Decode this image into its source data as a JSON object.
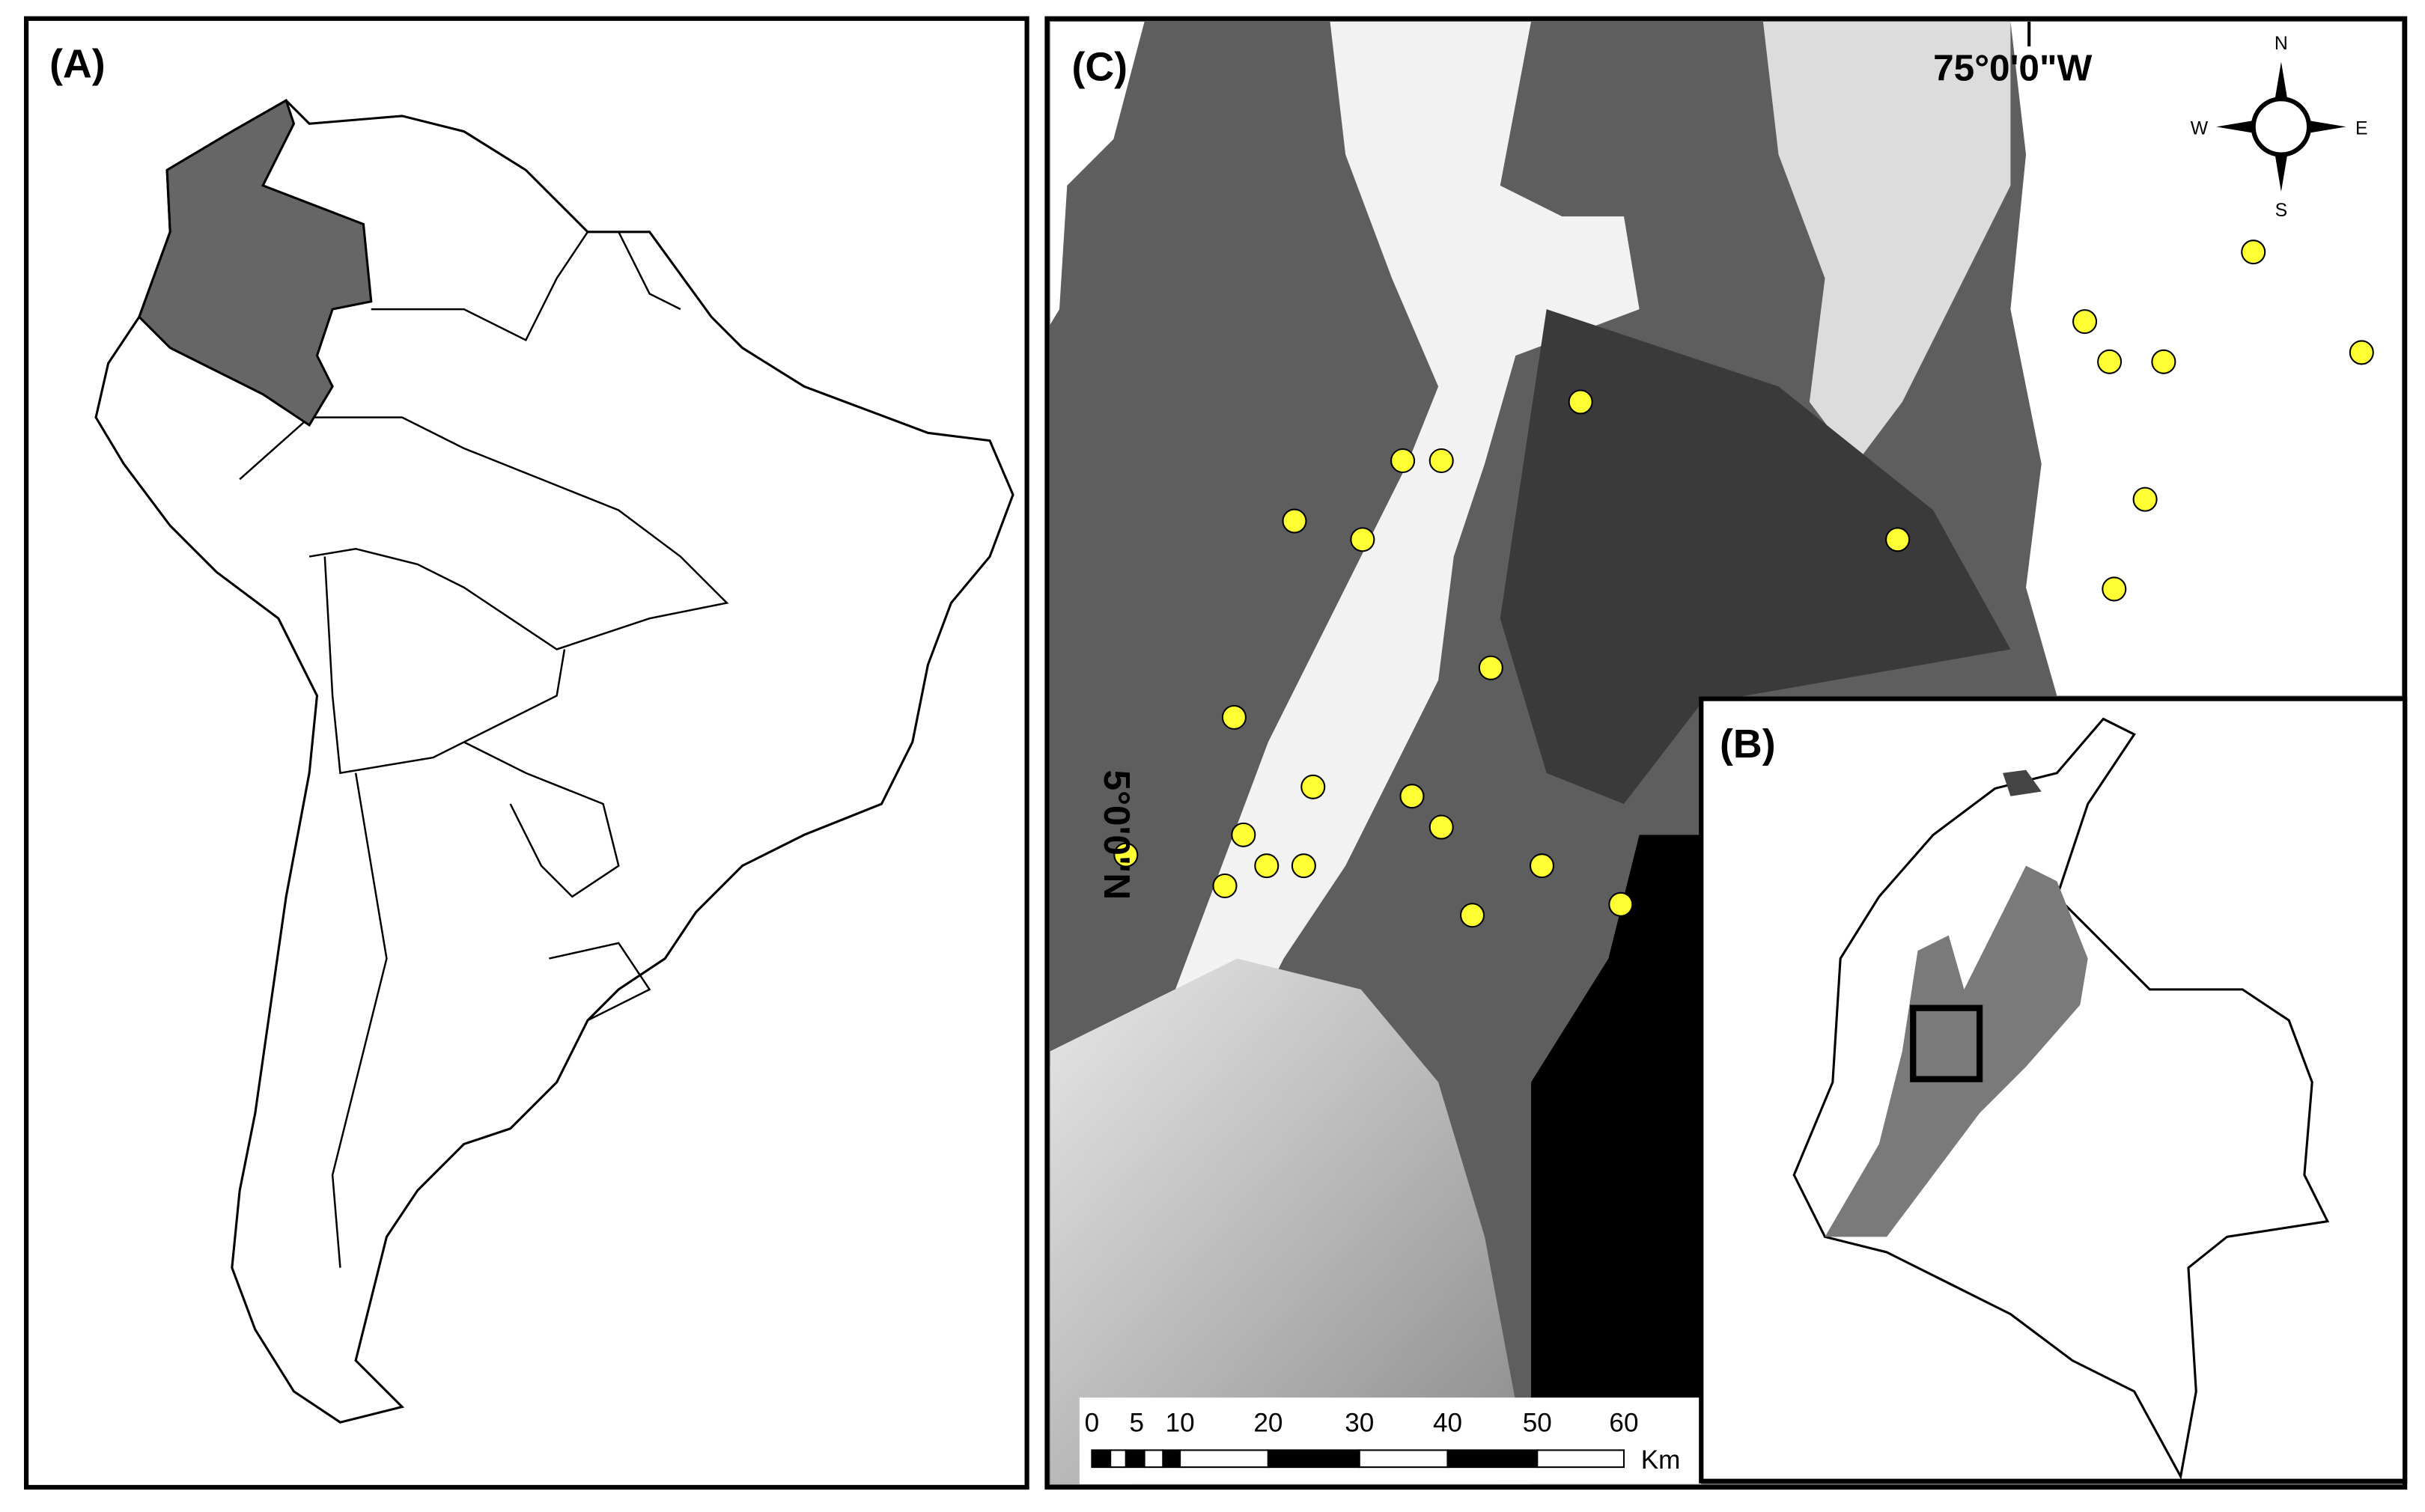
{
  "panels": {
    "a": {
      "label": "(A)"
    },
    "b": {
      "label": "(B)"
    },
    "c": {
      "label": "(C)",
      "longitude": "75°0'0\"W",
      "latitude": "5°0'0\"N",
      "compass": {
        "north": "N",
        "south": "S",
        "east": "E",
        "west": "W"
      },
      "scale_bar": {
        "labels": [
          "0",
          "5",
          "10",
          "20",
          "30",
          "40",
          "50",
          "60"
        ],
        "unit": "Km"
      }
    }
  }
}
